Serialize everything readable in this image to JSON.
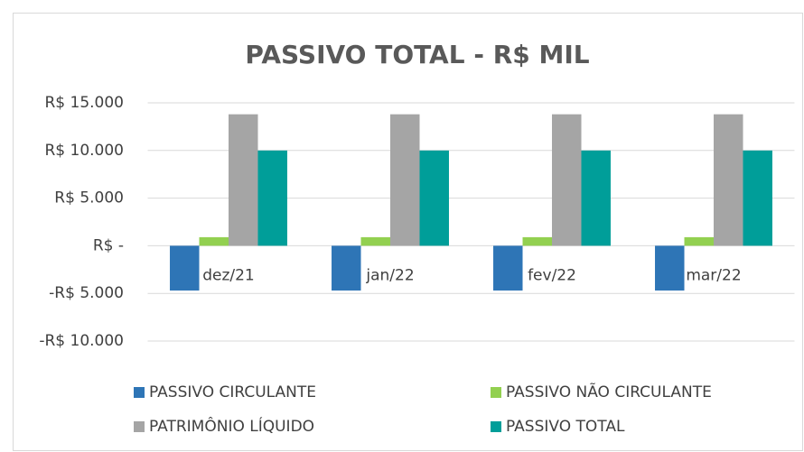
{
  "chart_data": {
    "type": "bar",
    "title": "PASSIVO TOTAL - R$ MIL",
    "categories": [
      "dez/21",
      "jan/22",
      "fev/22",
      "mar/22"
    ],
    "series": [
      {
        "name": "PASSIVO CIRCULANTE",
        "color": "#2e75b6",
        "values": [
          -4700,
          -4700,
          -4700,
          -4700
        ]
      },
      {
        "name": "PASSIVO NÃO CIRCULANTE",
        "color": "#92d050",
        "values": [
          900,
          900,
          900,
          900
        ]
      },
      {
        "name": "PATRIMÔNIO LÍQUIDO",
        "color": "#a5a5a5",
        "values": [
          13800,
          13800,
          13800,
          13800
        ]
      },
      {
        "name": "PASSIVO TOTAL",
        "color": "#009e99",
        "values": [
          10000,
          10000,
          10000,
          10000
        ]
      }
    ],
    "ylim": [
      -10000,
      15000
    ],
    "yticks": [
      {
        "value": 15000,
        "label": "R$ 15.000"
      },
      {
        "value": 10000,
        "label": "R$ 10.000"
      },
      {
        "value": 5000,
        "label": "R$ 5.000"
      },
      {
        "value": 0,
        "label": "R$ -"
      },
      {
        "value": -5000,
        "label": "-R$ 5.000"
      },
      {
        "value": -10000,
        "label": "-R$ 10.000"
      }
    ],
    "grid": true,
    "legend": "bottom"
  }
}
